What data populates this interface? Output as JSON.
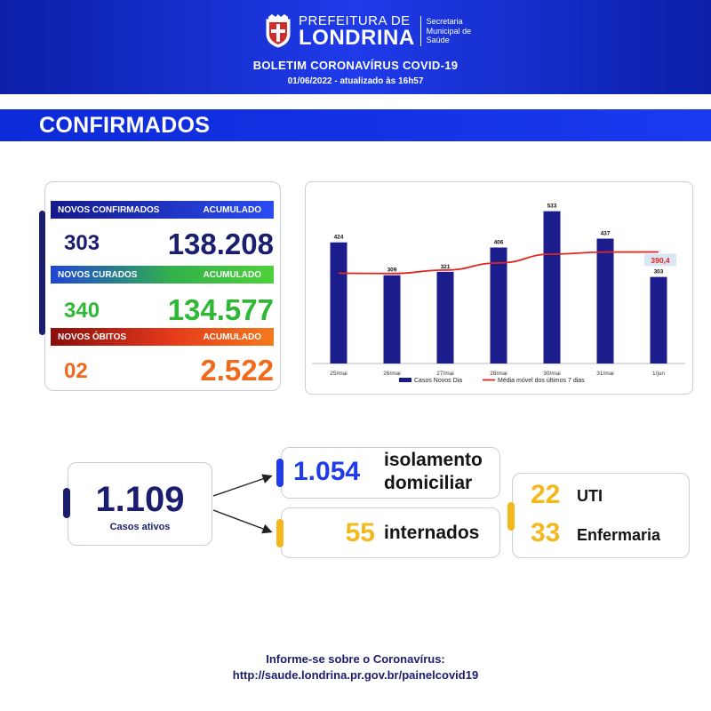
{
  "header": {
    "logo_top": "PREFEITURA DE",
    "logo_main": "LONDRINA",
    "logo_sub": "Secretaria Municipal de Saúde",
    "title": "BOLETIM CORONAVÍRUS COVID-19",
    "date": "01/06/2022 - atualizado às 16h57"
  },
  "section": {
    "title": "CONFIRMADOS"
  },
  "stats": {
    "confirmed": {
      "label": "NOVOS CONFIRMADOS",
      "acc_label": "ACUMULADO",
      "new": "303",
      "total": "138.208"
    },
    "recovered": {
      "label": "NOVOS CURADOS",
      "acc_label": "ACUMULADO",
      "new": "340",
      "total": "134.577"
    },
    "deaths": {
      "label": "NOVOS ÓBITOS",
      "acc_label": "ACUMULADO",
      "new": "02",
      "total": "2.522"
    }
  },
  "chart_data": {
    "type": "bar",
    "categories": [
      "25/mai",
      "26/mai",
      "27/mai",
      "28/mai",
      "30/mai",
      "31/mai",
      "1/jun"
    ],
    "series": [
      {
        "name": "Casos Novos Dia",
        "type": "bar",
        "values": [
          424,
          309,
          321,
          406,
          533,
          437,
          303
        ],
        "color": "#1b1d8c"
      },
      {
        "name": "Média móvel dos últimos 7 dias",
        "type": "line",
        "values": [
          316,
          315,
          327,
          352,
          383,
          390,
          390.4
        ],
        "color": "#e0261e"
      }
    ],
    "bar_labels": [
      "424",
      "309",
      "321",
      "406",
      "533",
      "437",
      "303"
    ],
    "line_last_label": "390,4",
    "ylim": [
      0,
      560
    ],
    "grid": false,
    "legend": "bottom"
  },
  "active": {
    "total": "1.109",
    "total_label": "Casos ativos",
    "isolation_value": "1.054",
    "isolation_label_1": "isolamento",
    "isolation_label_2": "domiciliar",
    "hospital_value": "55",
    "hospital_label": "internados",
    "icu_value": "22",
    "icu_label": "UTI",
    "ward_value": "33",
    "ward_label": "Enfermaria"
  },
  "footer": {
    "line1": "Informe-se sobre o Coronavírus:",
    "line2": "http://saude.londrina.pr.gov.br/painelcovid19"
  },
  "colors": {
    "navy": "#1b1d6e",
    "blue": "#1f3bea",
    "green": "#2eb834",
    "orange": "#f06a1c",
    "yellow": "#f5b81c",
    "red_line": "#e0261e"
  }
}
